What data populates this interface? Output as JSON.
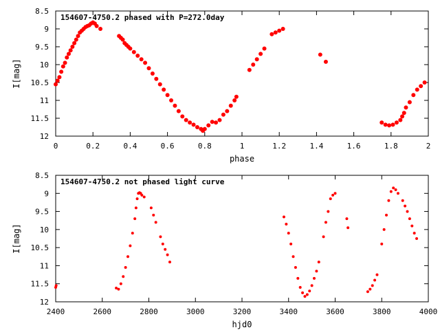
{
  "chart_data": [
    {
      "type": "scatter",
      "title": "154607-4750.2 phased with P=272.0day",
      "xlabel": "phase",
      "ylabel": "I[mag]",
      "xlim": [
        0,
        2
      ],
      "ylim": [
        8.5,
        12
      ],
      "y_inverted": true,
      "grid": false,
      "xticks": [
        "0",
        "0.2",
        "0.4",
        "0.6",
        "0.8",
        "1",
        "1.2",
        "1.4",
        "1.6",
        "1.8",
        "2"
      ],
      "yticks": [
        "8.5",
        "9",
        "9.5",
        "10",
        "10.5",
        "11",
        "11.5",
        "12"
      ],
      "marker_color": "#ff0000",
      "series": [
        {
          "points": [
            [
              0.0,
              10.55
            ],
            [
              0.01,
              10.45
            ],
            [
              0.02,
              10.35
            ],
            [
              0.03,
              10.2
            ],
            [
              0.04,
              10.05
            ],
            [
              0.05,
              9.95
            ],
            [
              0.06,
              9.8
            ],
            [
              0.07,
              9.7
            ],
            [
              0.08,
              9.6
            ],
            [
              0.09,
              9.5
            ],
            [
              0.1,
              9.4
            ],
            [
              0.11,
              9.3
            ],
            [
              0.12,
              9.2
            ],
            [
              0.13,
              9.1
            ],
            [
              0.14,
              9.05
            ],
            [
              0.15,
              9.0
            ],
            [
              0.16,
              8.95
            ],
            [
              0.17,
              8.92
            ],
            [
              0.18,
              8.9
            ],
            [
              0.19,
              8.85
            ],
            [
              0.2,
              8.82
            ],
            [
              0.21,
              8.85
            ],
            [
              0.22,
              8.92
            ],
            [
              0.24,
              9.0
            ],
            [
              0.34,
              9.2
            ],
            [
              0.35,
              9.25
            ],
            [
              0.36,
              9.3
            ],
            [
              0.37,
              9.4
            ],
            [
              0.38,
              9.45
            ],
            [
              0.39,
              9.5
            ],
            [
              0.4,
              9.55
            ],
            [
              0.42,
              9.65
            ],
            [
              0.44,
              9.75
            ],
            [
              0.46,
              9.85
            ],
            [
              0.48,
              9.95
            ],
            [
              0.5,
              10.1
            ],
            [
              0.52,
              10.25
            ],
            [
              0.54,
              10.4
            ],
            [
              0.56,
              10.55
            ],
            [
              0.58,
              10.7
            ],
            [
              0.6,
              10.85
            ],
            [
              0.62,
              11.0
            ],
            [
              0.64,
              11.15
            ],
            [
              0.66,
              11.3
            ],
            [
              0.68,
              11.45
            ],
            [
              0.7,
              11.55
            ],
            [
              0.72,
              11.62
            ],
            [
              0.74,
              11.68
            ],
            [
              0.76,
              11.75
            ],
            [
              0.78,
              11.8
            ],
            [
              0.79,
              11.85
            ],
            [
              0.8,
              11.8
            ],
            [
              0.82,
              11.7
            ],
            [
              0.84,
              11.6
            ],
            [
              0.86,
              11.62
            ],
            [
              0.88,
              11.55
            ],
            [
              0.9,
              11.4
            ],
            [
              0.92,
              11.3
            ],
            [
              0.94,
              11.15
            ],
            [
              0.96,
              11.0
            ],
            [
              0.97,
              10.9
            ],
            [
              1.04,
              10.15
            ],
            [
              1.06,
              10.0
            ],
            [
              1.08,
              9.85
            ],
            [
              1.1,
              9.7
            ],
            [
              1.12,
              9.55
            ],
            [
              1.16,
              9.15
            ],
            [
              1.18,
              9.1
            ],
            [
              1.2,
              9.05
            ],
            [
              1.22,
              9.0
            ],
            [
              1.42,
              9.72
            ],
            [
              1.45,
              9.92
            ],
            [
              1.75,
              11.62
            ],
            [
              1.77,
              11.68
            ],
            [
              1.79,
              11.7
            ],
            [
              1.81,
              11.68
            ],
            [
              1.83,
              11.62
            ],
            [
              1.85,
              11.55
            ],
            [
              1.86,
              11.45
            ],
            [
              1.87,
              11.35
            ],
            [
              1.88,
              11.2
            ],
            [
              1.9,
              11.05
            ],
            [
              1.92,
              10.85
            ],
            [
              1.94,
              10.7
            ],
            [
              1.96,
              10.6
            ],
            [
              1.98,
              10.5
            ]
          ]
        }
      ]
    },
    {
      "type": "scatter",
      "title": "154607-4750.2 not phased light curve",
      "xlabel": "hjd0",
      "ylabel": "I[mag]",
      "xlim": [
        2400,
        4000
      ],
      "ylim": [
        8.5,
        12
      ],
      "y_inverted": true,
      "grid": false,
      "xticks": [
        "2400",
        "2600",
        "2800",
        "3000",
        "3200",
        "3400",
        "3600",
        "3800",
        "4000"
      ],
      "yticks": [
        "8.5",
        "9",
        "9.5",
        "10",
        "10.5",
        "11",
        "11.5",
        "12"
      ],
      "marker_color": "#ff0000",
      "series": [
        {
          "points": [
            [
              2400,
              11.6
            ],
            [
              2402,
              11.55
            ],
            [
              2660,
              11.62
            ],
            [
              2670,
              11.65
            ],
            [
              2680,
              11.5
            ],
            [
              2690,
              11.3
            ],
            [
              2700,
              11.05
            ],
            [
              2710,
              10.75
            ],
            [
              2720,
              10.45
            ],
            [
              2730,
              10.1
            ],
            [
              2740,
              9.7
            ],
            [
              2745,
              9.4
            ],
            [
              2750,
              9.15
            ],
            [
              2755,
              9.0
            ],
            [
              2760,
              8.98
            ],
            [
              2765,
              9.0
            ],
            [
              2770,
              9.05
            ],
            [
              2780,
              9.1
            ],
            [
              2810,
              9.4
            ],
            [
              2820,
              9.6
            ],
            [
              2830,
              9.8
            ],
            [
              2850,
              10.2
            ],
            [
              2860,
              10.4
            ],
            [
              2870,
              10.55
            ],
            [
              2880,
              10.7
            ],
            [
              2890,
              10.9
            ],
            [
              3380,
              9.65
            ],
            [
              3390,
              9.85
            ],
            [
              3400,
              10.1
            ],
            [
              3410,
              10.4
            ],
            [
              3420,
              10.75
            ],
            [
              3430,
              11.05
            ],
            [
              3440,
              11.35
            ],
            [
              3450,
              11.6
            ],
            [
              3460,
              11.75
            ],
            [
              3470,
              11.85
            ],
            [
              3480,
              11.8
            ],
            [
              3490,
              11.7
            ],
            [
              3500,
              11.55
            ],
            [
              3510,
              11.35
            ],
            [
              3520,
              11.15
            ],
            [
              3530,
              10.9
            ],
            [
              3550,
              10.2
            ],
            [
              3560,
              9.8
            ],
            [
              3570,
              9.5
            ],
            [
              3580,
              9.15
            ],
            [
              3590,
              9.05
            ],
            [
              3600,
              9.0
            ],
            [
              3650,
              9.7
            ],
            [
              3655,
              9.95
            ],
            [
              3740,
              11.72
            ],
            [
              3750,
              11.65
            ],
            [
              3760,
              11.55
            ],
            [
              3770,
              11.4
            ],
            [
              3780,
              11.25
            ],
            [
              3800,
              10.4
            ],
            [
              3810,
              10.0
            ],
            [
              3820,
              9.6
            ],
            [
              3830,
              9.2
            ],
            [
              3840,
              8.95
            ],
            [
              3850,
              8.85
            ],
            [
              3860,
              8.9
            ],
            [
              3870,
              9.0
            ],
            [
              3890,
              9.2
            ],
            [
              3900,
              9.35
            ],
            [
              3910,
              9.5
            ],
            [
              3920,
              9.7
            ],
            [
              3930,
              9.9
            ],
            [
              3940,
              10.1
            ],
            [
              3950,
              10.25
            ]
          ]
        }
      ]
    }
  ]
}
